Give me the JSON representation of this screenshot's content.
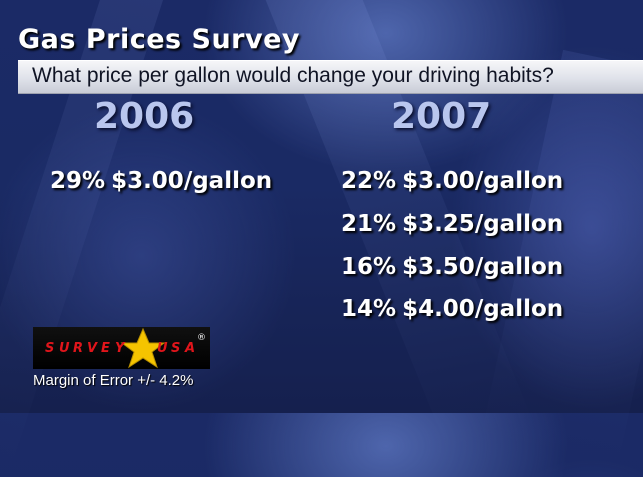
{
  "title": "Gas Prices Survey",
  "question": "What price per gallon would change your driving habits?",
  "logo_text": "SURVEYUSA",
  "margin_of_error": "Margin of Error +/- 4.2%",
  "colors": {
    "background": "#1a2a64",
    "year_text": "#b9c6ee",
    "entry_text": "#ffffff",
    "logo_red": "#e0151b",
    "logo_star": "#f5c400"
  },
  "chart_data": {
    "type": "table",
    "columns": [
      "2006",
      "2007"
    ],
    "groups": [
      {
        "year": "2006",
        "entries": [
          {
            "percent": "29%",
            "price": "$3.00/gallon"
          }
        ]
      },
      {
        "year": "2007",
        "entries": [
          {
            "percent": "22%",
            "price": "$3.00/gallon"
          },
          {
            "percent": "21%",
            "price": "$3.25/gallon"
          },
          {
            "percent": "16%",
            "price": "$3.50/gallon"
          },
          {
            "percent": "14%",
            "price": "$4.00/gallon"
          }
        ]
      }
    ]
  }
}
